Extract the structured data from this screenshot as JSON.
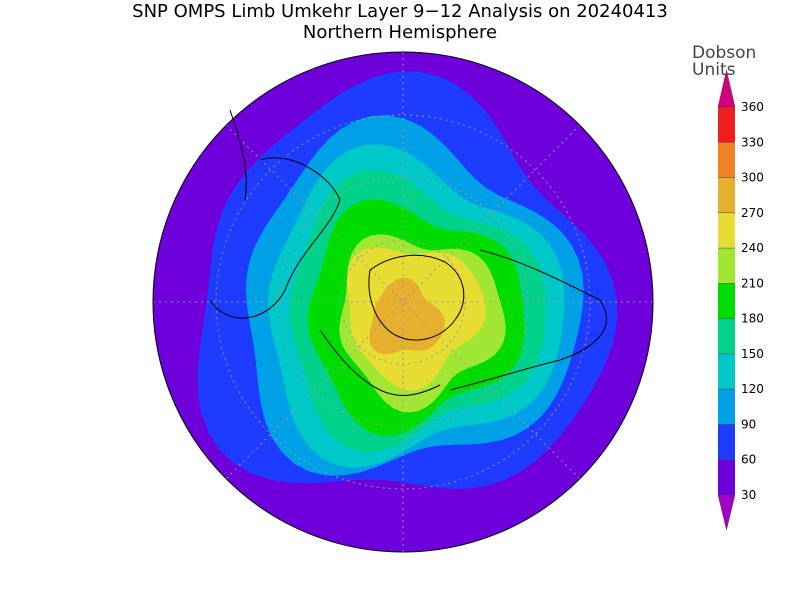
{
  "map": {
    "title": "SNP OMPS Limb Umkehr Layer 9−12 Analysis on 20240413",
    "subtitle": "Northern Hemisphere",
    "colorbar": {
      "label": [
        "Dobson",
        "Units"
      ],
      "ticks": [
        30,
        60,
        90,
        120,
        150,
        180,
        210,
        240,
        270,
        300,
        330,
        360
      ],
      "colors": [
        "#a000c8",
        "#6e00dc",
        "#1e3cff",
        "#00a0e6",
        "#00c8c8",
        "#00d28c",
        "#00dc00",
        "#a0e632",
        "#e6dc32",
        "#e6af2d",
        "#f08228",
        "#f01e1e",
        "#d2007d"
      ]
    }
  }
}
